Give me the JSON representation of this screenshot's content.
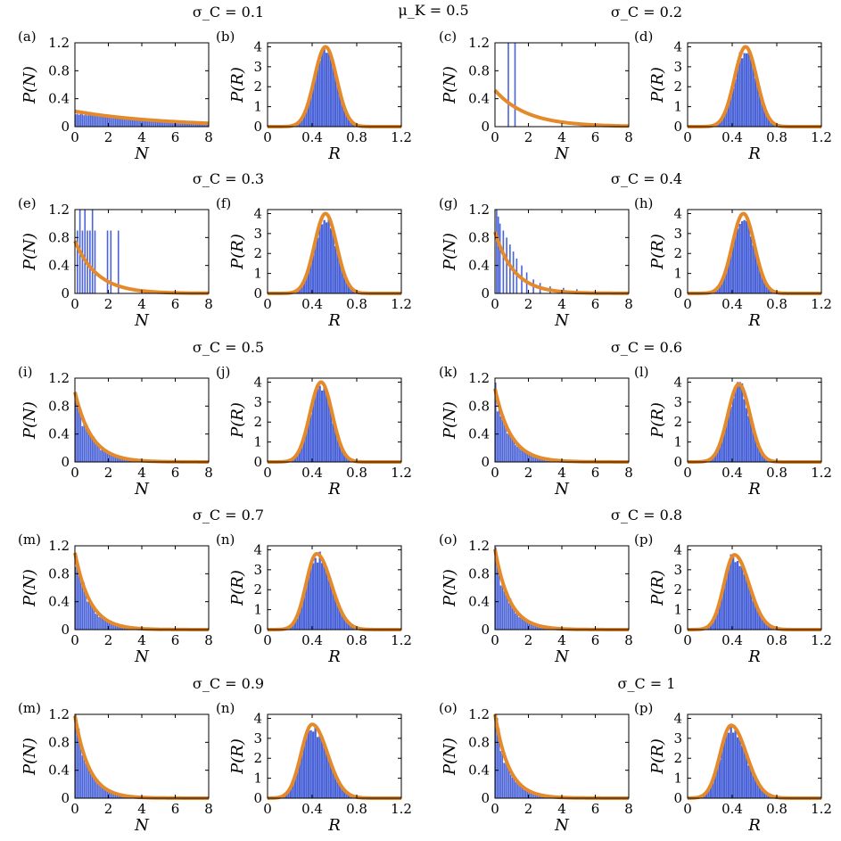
{
  "figure_title": "μ_K = 0.5",
  "colors": {
    "histogram": "#4a63d8",
    "fit": "#e58a2b",
    "axes": "#000000"
  },
  "chart_data": [
    {
      "type": "bar",
      "panel": "(a)",
      "group_title": "σ_C = 0.1",
      "dist": "N",
      "xlabel": "N",
      "ylabel": "P(N)",
      "xlim": [
        0,
        8
      ],
      "ylim": [
        0,
        1.2
      ],
      "xticks": [
        "0",
        "2",
        "4",
        "6",
        "8"
      ],
      "yticks": [
        "0",
        "0.4",
        "0.8",
        "1.2"
      ],
      "fit_curve": {
        "form": "exponential",
        "params": [
          0.22,
          0.19
        ]
      },
      "histogram_spikes": []
    },
    {
      "type": "bar",
      "panel": "(b)",
      "group_title": "σ_C = 0.1",
      "dist": "R",
      "xlabel": "R",
      "ylabel": "P(R)",
      "xlim": [
        0,
        1.2
      ],
      "ylim": [
        0,
        4.2
      ],
      "xticks": [
        "0",
        "0.4",
        "0.8",
        "1.2"
      ],
      "yticks": [
        "0",
        "1",
        "2",
        "3",
        "4"
      ],
      "fit_curve": {
        "form": "gaussian",
        "params": [
          0.52,
          0.1,
          4.0
        ]
      }
    },
    {
      "type": "bar",
      "panel": "(c)",
      "group_title": "σ_C = 0.2",
      "dist": "N",
      "xlabel": "N",
      "ylabel": "P(N)",
      "xlim": [
        0,
        8
      ],
      "ylim": [
        0,
        1.2
      ],
      "xticks": [
        "0",
        "2",
        "4",
        "6",
        "8"
      ],
      "yticks": [
        "0",
        "0.4",
        "0.8",
        "1.2"
      ],
      "fit_curve": {
        "form": "exponential",
        "params": [
          0.52,
          0.52
        ]
      },
      "histogram_spikes": [
        [
          0.8,
          1.2
        ],
        [
          1.2,
          1.2
        ]
      ]
    },
    {
      "type": "bar",
      "panel": "(d)",
      "group_title": "σ_C = 0.2",
      "dist": "R",
      "xlabel": "R",
      "ylabel": "P(R)",
      "xlim": [
        0,
        1.2
      ],
      "ylim": [
        0,
        4.2
      ],
      "xticks": [
        "0",
        "0.4",
        "0.8",
        "1.2"
      ],
      "yticks": [
        "0",
        "1",
        "2",
        "3",
        "4"
      ],
      "fit_curve": {
        "form": "gaussian",
        "params": [
          0.52,
          0.1,
          4.0
        ]
      }
    },
    {
      "type": "bar",
      "panel": "(e)",
      "group_title": "σ_C = 0.3",
      "dist": "N",
      "xlabel": "N",
      "ylabel": "P(N)",
      "xlim": [
        0,
        8
      ],
      "ylim": [
        0,
        1.2
      ],
      "xticks": [
        "0",
        "2",
        "4",
        "6",
        "8"
      ],
      "yticks": [
        "0",
        "0.4",
        "0.8",
        "1.2"
      ],
      "fit_curve": {
        "form": "exponential",
        "params": [
          0.75,
          0.75
        ]
      },
      "histogram_spikes": [
        [
          0.15,
          0.9
        ],
        [
          0.3,
          1.2
        ],
        [
          0.45,
          0.9
        ],
        [
          0.6,
          1.2
        ],
        [
          0.75,
          0.9
        ],
        [
          0.9,
          0.9
        ],
        [
          1.05,
          1.2
        ],
        [
          1.2,
          0.9
        ],
        [
          1.95,
          0.9
        ],
        [
          2.15,
          0.9
        ],
        [
          2.6,
          0.9
        ]
      ]
    },
    {
      "type": "bar",
      "panel": "(f)",
      "group_title": "σ_C = 0.3",
      "dist": "R",
      "xlabel": "R",
      "ylabel": "P(R)",
      "xlim": [
        0,
        1.2
      ],
      "ylim": [
        0,
        4.2
      ],
      "xticks": [
        "0",
        "0.4",
        "0.8",
        "1.2"
      ],
      "yticks": [
        "0",
        "1",
        "2",
        "3",
        "4"
      ],
      "fit_curve": {
        "form": "gaussian",
        "params": [
          0.52,
          0.1,
          4.0
        ]
      }
    },
    {
      "type": "bar",
      "panel": "(g)",
      "group_title": "σ_C = 0.4",
      "dist": "N",
      "xlabel": "N",
      "ylabel": "P(N)",
      "xlim": [
        0,
        8
      ],
      "ylim": [
        0,
        1.2
      ],
      "xticks": [
        "0",
        "2",
        "4",
        "6",
        "8"
      ],
      "yticks": [
        "0",
        "0.4",
        "0.8",
        "1.2"
      ],
      "fit_curve": {
        "form": "exponential",
        "params": [
          0.88,
          0.88
        ]
      },
      "histogram_spikes": [
        [
          0.1,
          1.2
        ],
        [
          0.2,
          1.1
        ],
        [
          0.3,
          1.0
        ],
        [
          0.5,
          0.9
        ],
        [
          0.7,
          0.8
        ],
        [
          0.9,
          0.7
        ],
        [
          1.1,
          0.6
        ],
        [
          1.3,
          0.5
        ],
        [
          1.6,
          0.4
        ],
        [
          1.9,
          0.3
        ],
        [
          2.3,
          0.2
        ],
        [
          2.7,
          0.15
        ],
        [
          3.3,
          0.1
        ],
        [
          4.1,
          0.08
        ],
        [
          4.9,
          0.06
        ]
      ]
    },
    {
      "type": "bar",
      "panel": "(h)",
      "group_title": "σ_C = 0.4",
      "dist": "R",
      "xlabel": "R",
      "ylabel": "P(R)",
      "xlim": [
        0,
        1.2
      ],
      "ylim": [
        0,
        4.2
      ],
      "xticks": [
        "0",
        "0.4",
        "0.8",
        "1.2"
      ],
      "yticks": [
        "0",
        "1",
        "2",
        "3",
        "4"
      ],
      "fit_curve": {
        "form": "gaussian",
        "params": [
          0.5,
          0.1,
          4.0
        ]
      }
    },
    {
      "type": "bar",
      "panel": "(i)",
      "group_title": "σ_C = 0.5",
      "dist": "N",
      "xlabel": "N",
      "ylabel": "P(N)",
      "xlim": [
        0,
        8
      ],
      "ylim": [
        0,
        1.2
      ],
      "xticks": [
        "0",
        "2",
        "4",
        "6",
        "8"
      ],
      "yticks": [
        "0",
        "0.4",
        "0.8",
        "1.2"
      ],
      "fit_curve": {
        "form": "exponential",
        "params": [
          1.0,
          1.0
        ]
      },
      "histogram_spikes": []
    },
    {
      "type": "bar",
      "panel": "(j)",
      "group_title": "σ_C = 0.5",
      "dist": "R",
      "xlabel": "R",
      "ylabel": "P(R)",
      "xlim": [
        0,
        1.2
      ],
      "ylim": [
        0,
        4.2
      ],
      "xticks": [
        "0",
        "0.4",
        "0.8",
        "1.2"
      ],
      "yticks": [
        "0",
        "1",
        "2",
        "3",
        "4"
      ],
      "fit_curve": {
        "form": "gaussian",
        "params": [
          0.48,
          0.1,
          4.0
        ]
      }
    },
    {
      "type": "bar",
      "panel": "(k)",
      "group_title": "σ_C = 0.6",
      "dist": "N",
      "xlabel": "N",
      "ylabel": "P(N)",
      "xlim": [
        0,
        8
      ],
      "ylim": [
        0,
        1.2
      ],
      "xticks": [
        "0",
        "2",
        "4",
        "6",
        "8"
      ],
      "yticks": [
        "0",
        "0.4",
        "0.8",
        "1.2"
      ],
      "fit_curve": {
        "form": "exponential",
        "params": [
          1.05,
          1.05
        ]
      },
      "histogram_spikes": []
    },
    {
      "type": "bar",
      "panel": "(l)",
      "group_title": "σ_C = 0.6",
      "dist": "R",
      "xlabel": "R",
      "ylabel": "P(R)",
      "xlim": [
        0,
        1.2
      ],
      "ylim": [
        0,
        4.2
      ],
      "xticks": [
        "0",
        "0.4",
        "0.8",
        "1.2"
      ],
      "yticks": [
        "0",
        "1",
        "2",
        "3",
        "4"
      ],
      "fit_curve": {
        "form": "gaussian",
        "params": [
          0.46,
          0.1,
          3.9
        ]
      }
    },
    {
      "type": "bar",
      "panel": "(m)",
      "group_title": "σ_C = 0.7",
      "dist": "N",
      "xlabel": "N",
      "ylabel": "P(N)",
      "xlim": [
        0,
        8
      ],
      "ylim": [
        0,
        1.2
      ],
      "xticks": [
        "0",
        "2",
        "4",
        "6",
        "8"
      ],
      "yticks": [
        "0",
        "0.4",
        "0.8",
        "1.2"
      ],
      "fit_curve": {
        "form": "exponential",
        "params": [
          1.1,
          1.1
        ]
      },
      "histogram_spikes": []
    },
    {
      "type": "bar",
      "panel": "(n)",
      "group_title": "σ_C = 0.7",
      "dist": "R",
      "xlabel": "R",
      "ylabel": "P(R)",
      "xlim": [
        0,
        1.2
      ],
      "ylim": [
        0,
        4.2
      ],
      "xticks": [
        "0",
        "0.4",
        "0.8",
        "1.2"
      ],
      "yticks": [
        "0",
        "1",
        "2",
        "3",
        "4"
      ],
      "fit_curve": {
        "form": "lognormal",
        "params": [
          0.44,
          0.105,
          3.8
        ]
      }
    },
    {
      "type": "bar",
      "panel": "(o)",
      "group_title": "σ_C = 0.8",
      "dist": "N",
      "xlabel": "N",
      "ylabel": "P(N)",
      "xlim": [
        0,
        8
      ],
      "ylim": [
        0,
        1.2
      ],
      "xticks": [
        "0",
        "2",
        "4",
        "6",
        "8"
      ],
      "yticks": [
        "0",
        "0.4",
        "0.8",
        "1.2"
      ],
      "fit_curve": {
        "form": "exponential",
        "params": [
          1.15,
          1.15
        ]
      },
      "histogram_spikes": []
    },
    {
      "type": "bar",
      "panel": "(p)",
      "group_title": "σ_C = 0.8",
      "dist": "R",
      "xlabel": "R",
      "ylabel": "P(R)",
      "xlim": [
        0,
        1.2
      ],
      "ylim": [
        0,
        4.2
      ],
      "xticks": [
        "0",
        "0.4",
        "0.8",
        "1.2"
      ],
      "yticks": [
        "0",
        "1",
        "2",
        "3",
        "4"
      ],
      "fit_curve": {
        "form": "lognormal",
        "params": [
          0.42,
          0.105,
          3.75
        ]
      }
    },
    {
      "type": "bar",
      "panel": "(m)",
      "group_title": "σ_C = 0.9",
      "dist": "N",
      "xlabel": "N",
      "ylabel": "P(N)",
      "xlim": [
        0,
        8
      ],
      "ylim": [
        0,
        1.2
      ],
      "xticks": [
        "0",
        "2",
        "4",
        "6",
        "8"
      ],
      "yticks": [
        "0",
        "0.4",
        "0.8",
        "1.2"
      ],
      "fit_curve": {
        "form": "exponential",
        "params": [
          1.18,
          1.18
        ]
      },
      "histogram_spikes": []
    },
    {
      "type": "bar",
      "panel": "(n)",
      "group_title": "σ_C = 0.9",
      "dist": "R",
      "xlabel": "R",
      "ylabel": "P(R)",
      "xlim": [
        0,
        1.2
      ],
      "ylim": [
        0,
        4.2
      ],
      "xticks": [
        "0",
        "0.4",
        "0.8",
        "1.2"
      ],
      "yticks": [
        "0",
        "1",
        "2",
        "3",
        "4"
      ],
      "fit_curve": {
        "form": "lognormal",
        "params": [
          0.4,
          0.11,
          3.7
        ]
      }
    },
    {
      "type": "bar",
      "panel": "(o)",
      "group_title": "σ_C = 1",
      "dist": "N",
      "xlabel": "N",
      "ylabel": "P(N)",
      "xlim": [
        0,
        8
      ],
      "ylim": [
        0,
        1.2
      ],
      "xticks": [
        "0",
        "2",
        "4",
        "6",
        "8"
      ],
      "yticks": [
        "0",
        "0.4",
        "0.8",
        "1.2"
      ],
      "fit_curve": {
        "form": "exponential",
        "params": [
          1.2,
          1.2
        ]
      },
      "histogram_spikes": []
    },
    {
      "type": "bar",
      "panel": "(p)",
      "group_title": "σ_C = 1",
      "dist": "R",
      "xlabel": "R",
      "ylabel": "P(R)",
      "xlim": [
        0,
        1.2
      ],
      "ylim": [
        0,
        4.2
      ],
      "xticks": [
        "0",
        "0.4",
        "0.8",
        "1.2"
      ],
      "yticks": [
        "0",
        "1",
        "2",
        "3",
        "4"
      ],
      "fit_curve": {
        "form": "lognormal",
        "params": [
          0.39,
          0.11,
          3.65
        ]
      }
    }
  ]
}
